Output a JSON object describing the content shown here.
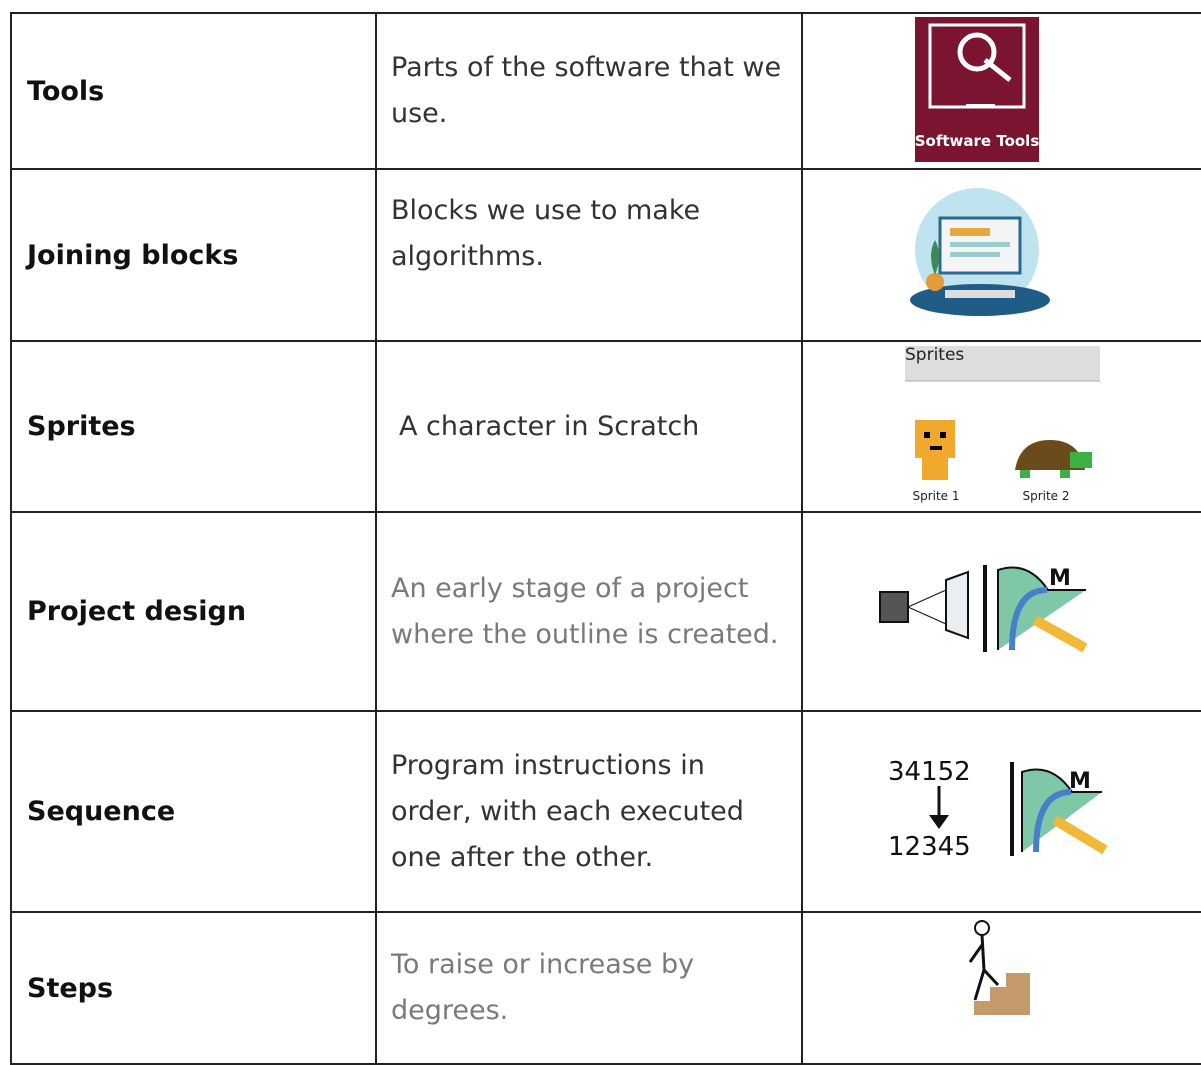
{
  "table": {
    "rows": [
      {
        "term": "Tools",
        "definition": "Parts of the software that we use.",
        "image_text": [
          "Software Tools"
        ]
      },
      {
        "term": "Joining blocks",
        "definition": "Blocks we use to make algorithms."
      },
      {
        "term": "Sprites",
        "definition": "A character in Scratch",
        "image_text": [
          "Sprites",
          "Sprite 1",
          "Sprite 2"
        ]
      },
      {
        "term": "Project design",
        "definition": "An early stage of a project where the outline is created.",
        "image_text": [
          "M"
        ]
      },
      {
        "term": "Sequence",
        "definition": "Program instructions in order, with each executed one after the other.",
        "image_text": [
          "34152",
          "12345",
          "M"
        ]
      },
      {
        "term": "Steps",
        "definition": "To raise or increase by degrees."
      }
    ]
  }
}
